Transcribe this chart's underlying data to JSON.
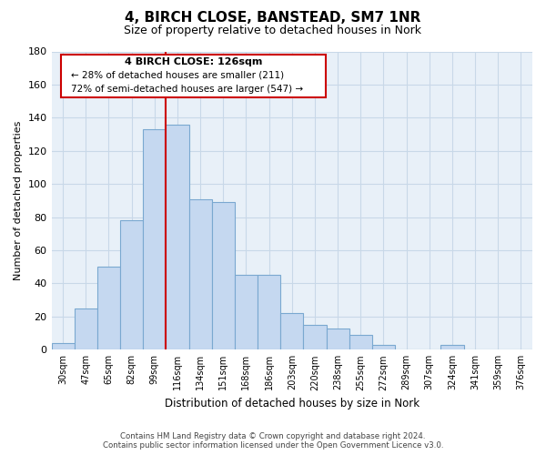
{
  "title": "4, BIRCH CLOSE, BANSTEAD, SM7 1NR",
  "subtitle": "Size of property relative to detached houses in Nork",
  "xlabel": "Distribution of detached houses by size in Nork",
  "ylabel": "Number of detached properties",
  "bar_labels": [
    "30sqm",
    "47sqm",
    "65sqm",
    "82sqm",
    "99sqm",
    "116sqm",
    "134sqm",
    "151sqm",
    "168sqm",
    "186sqm",
    "203sqm",
    "220sqm",
    "238sqm",
    "255sqm",
    "272sqm",
    "289sqm",
    "307sqm",
    "324sqm",
    "341sqm",
    "359sqm",
    "376sqm"
  ],
  "bar_values": [
    4,
    25,
    50,
    78,
    133,
    136,
    91,
    89,
    45,
    45,
    22,
    15,
    13,
    9,
    3,
    0,
    0,
    3,
    0,
    0,
    0
  ],
  "bar_color": "#c5d8f0",
  "bar_edge_color": "#7aa8d0",
  "vline_x": 5.0,
  "vline_color": "#cc0000",
  "ylim": [
    0,
    180
  ],
  "yticks": [
    0,
    20,
    40,
    60,
    80,
    100,
    120,
    140,
    160,
    180
  ],
  "annotation_title": "4 BIRCH CLOSE: 126sqm",
  "annotation_line1": "← 28% of detached houses are smaller (211)",
  "annotation_line2": "72% of semi-detached houses are larger (547) →",
  "annotation_box_color": "#ffffff",
  "annotation_box_edge": "#cc0000",
  "footer_line1": "Contains HM Land Registry data © Crown copyright and database right 2024.",
  "footer_line2": "Contains public sector information licensed under the Open Government Licence v3.0.",
  "bg_color": "#e8f0f8",
  "grid_color": "#c8d8e8"
}
